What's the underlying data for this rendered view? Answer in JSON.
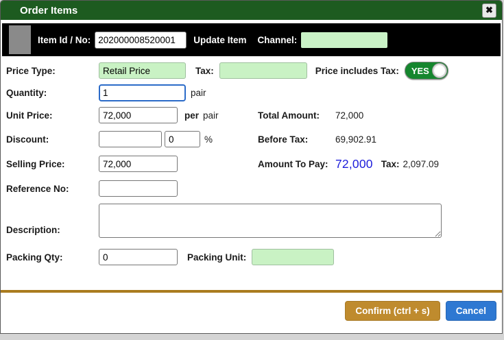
{
  "dialog": {
    "title": "Order Items",
    "close_icon": "✖"
  },
  "header": {
    "item_id_label": "Item Id / No:",
    "item_id_value": "202000008520001",
    "update_item_label": "Update Item",
    "channel_label": "Channel:",
    "channel_value": ""
  },
  "form": {
    "price_type_label": "Price Type:",
    "price_type_value": "Retail Price",
    "tax_label": "Tax:",
    "tax_value": "",
    "price_includes_tax_label": "Price includes Tax:",
    "price_includes_tax_value": "YES",
    "quantity_label": "Quantity:",
    "quantity_value": "1",
    "quantity_unit": "pair",
    "unit_price_label": "Unit Price:",
    "unit_price_value": "72,000",
    "per_label": "per",
    "per_unit": "pair",
    "total_amount_label": "Total Amount:",
    "total_amount_value": "72,000",
    "discount_label": "Discount:",
    "discount_value": "",
    "discount_percent_value": "0",
    "percent_sign": "%",
    "before_tax_label": "Before Tax:",
    "before_tax_value": "69,902.91",
    "selling_price_label": "Selling Price:",
    "selling_price_value": "72,000",
    "amount_to_pay_label": "Amount To Pay:",
    "amount_to_pay_value": "72,000",
    "amount_tax_label": "Tax:",
    "amount_tax_value": "2,097.09",
    "reference_no_label": "Reference No:",
    "reference_no_value": "",
    "description_label": "Description:",
    "description_value": "",
    "packing_qty_label": "Packing Qty:",
    "packing_qty_value": "0",
    "packing_unit_label": "Packing Unit:",
    "packing_unit_value": ""
  },
  "footer": {
    "confirm_label": "Confirm (ctrl + s)",
    "cancel_label": "Cancel"
  },
  "colors": {
    "titlebar_green": "#1d5b20",
    "toggle_green": "#15862e",
    "field_green": "#c9f2c4",
    "confirm_gold": "#bf8b2e",
    "cancel_blue": "#2e78d2",
    "amount_blue": "#1c1cdb",
    "divider_gold": "#aa7c1f"
  }
}
